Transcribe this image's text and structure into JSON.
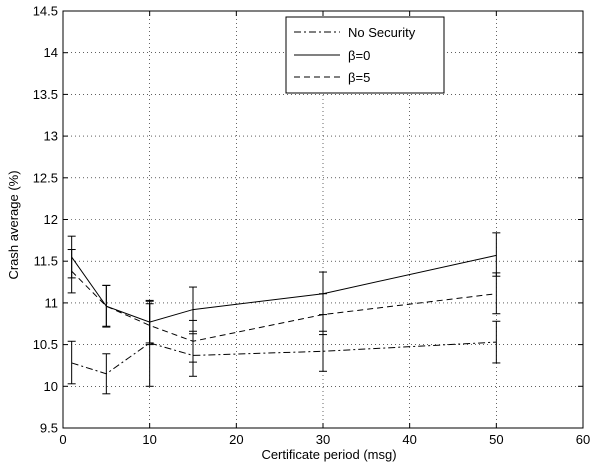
{
  "chart_data": {
    "type": "line",
    "title": "",
    "xlabel": "Certificate period (msg)",
    "ylabel": "Crash average (%)",
    "xlim": [
      0,
      60
    ],
    "ylim": [
      9.5,
      14.5
    ],
    "xticks": [
      0,
      10,
      20,
      30,
      40,
      50,
      60
    ],
    "yticks": [
      9.5,
      10,
      10.5,
      11,
      11.5,
      12,
      12.5,
      13,
      13.5,
      14,
      14.5
    ],
    "xtick_labels": [
      "0",
      "10",
      "20",
      "30",
      "40",
      "50",
      "60"
    ],
    "ytick_labels": [
      "9.5",
      "10",
      "10.5",
      "11",
      "11.5",
      "12",
      "12.5",
      "13",
      "13.5",
      "14",
      "14.5"
    ],
    "grid": true,
    "legend_position": "top-center",
    "x": [
      1,
      5,
      10,
      15,
      30,
      50
    ],
    "series": [
      {
        "name": "No Security",
        "style": "dash-dot",
        "values": [
          10.28,
          10.15,
          10.52,
          10.37,
          10.42,
          10.53
        ],
        "err_low": [
          10.03,
          9.91,
          10.0,
          10.12,
          10.18,
          10.28
        ],
        "err_high": [
          10.54,
          10.39,
          11.03,
          10.63,
          10.66,
          10.78
        ]
      },
      {
        "name": "β=0",
        "style": "solid",
        "values": [
          11.55,
          10.96,
          10.77,
          10.92,
          11.11,
          11.57
        ],
        "err_low": [
          11.3,
          10.71,
          10.52,
          10.66,
          10.86,
          11.32
        ],
        "err_high": [
          11.8,
          11.21,
          11.02,
          11.19,
          11.37,
          11.84
        ]
      },
      {
        "name": "β=5",
        "style": "dashed",
        "values": [
          11.38,
          10.96,
          10.73,
          10.54,
          10.86,
          11.11
        ],
        "err_low": [
          11.12,
          10.72,
          10.5,
          10.29,
          10.62,
          10.87
        ],
        "err_high": [
          11.64,
          11.21,
          10.99,
          10.79,
          11.11,
          11.36
        ]
      }
    ]
  }
}
